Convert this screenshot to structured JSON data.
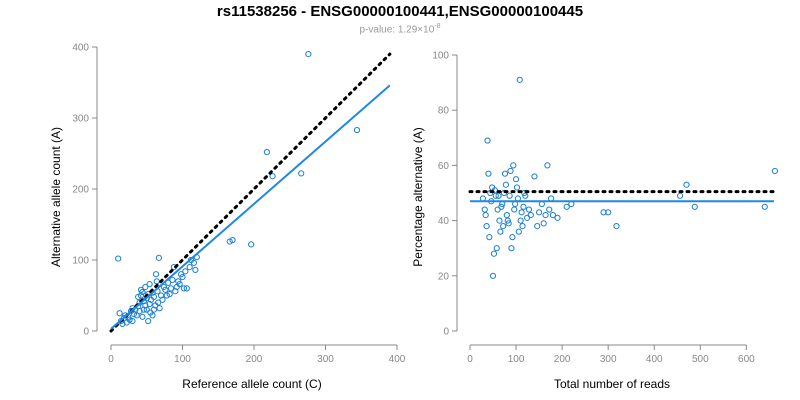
{
  "title": "rs11538256 - ENSG00000100441,ENSG00000100445",
  "subtitle": {
    "prefix": "p-value: 1.29×10",
    "exponent": "-8"
  },
  "colors": {
    "points": "#1a7fd6",
    "fit_line": "#1e88e5",
    "reference_line": "#000000",
    "axis": "#888888"
  },
  "chart_data": [
    {
      "type": "scatter",
      "name": "left",
      "xlabel": "Reference allele count (C)",
      "ylabel": "Alternative allele count (A)",
      "xlim": [
        0,
        400
      ],
      "ylim": [
        0,
        400
      ],
      "xticks": [
        0,
        100,
        200,
        300,
        400
      ],
      "yticks": [
        0,
        100,
        200,
        300,
        400
      ],
      "reference_line": {
        "style": "dotted",
        "x": [
          0,
          390
        ],
        "y": [
          0,
          390
        ]
      },
      "fit_line": {
        "style": "solid",
        "x": [
          0,
          390
        ],
        "y": [
          3,
          346
        ]
      },
      "points": [
        [
          10,
          102
        ],
        [
          12,
          25
        ],
        [
          14,
          14
        ],
        [
          16,
          10
        ],
        [
          18,
          18
        ],
        [
          20,
          22
        ],
        [
          22,
          12
        ],
        [
          24,
          20
        ],
        [
          26,
          16
        ],
        [
          28,
          28
        ],
        [
          30,
          32
        ],
        [
          30,
          14
        ],
        [
          32,
          24
        ],
        [
          34,
          30
        ],
        [
          36,
          22
        ],
        [
          38,
          35
        ],
        [
          40,
          40
        ],
        [
          40,
          28
        ],
        [
          42,
          50
        ],
        [
          44,
          20
        ],
        [
          44,
          55
        ],
        [
          46,
          42
        ],
        [
          48,
          36
        ],
        [
          50,
          30
        ],
        [
          50,
          46
        ],
        [
          52,
          14
        ],
        [
          52,
          52
        ],
        [
          54,
          38
        ],
        [
          55,
          26
        ],
        [
          56,
          44
        ],
        [
          58,
          54
        ],
        [
          60,
          30
        ],
        [
          60,
          48
        ],
        [
          62,
          36
        ],
        [
          63,
          80
        ],
        [
          65,
          56
        ],
        [
          66,
          40
        ],
        [
          67,
          103
        ],
        [
          68,
          32
        ],
        [
          70,
          50
        ],
        [
          72,
          44
        ],
        [
          74,
          62
        ],
        [
          76,
          58
        ],
        [
          78,
          50
        ],
        [
          80,
          68
        ],
        [
          82,
          52
        ],
        [
          84,
          60
        ],
        [
          86,
          72
        ],
        [
          88,
          90
        ],
        [
          90,
          56
        ],
        [
          92,
          62
        ],
        [
          94,
          70
        ],
        [
          96,
          66
        ],
        [
          98,
          80
        ],
        [
          100,
          76
        ],
        [
          102,
          60
        ],
        [
          104,
          84
        ],
        [
          106,
          60
        ],
        [
          110,
          90
        ],
        [
          112,
          100
        ],
        [
          116,
          96
        ],
        [
          118,
          86
        ],
        [
          120,
          104
        ],
        [
          42,
          58
        ],
        [
          48,
          62
        ],
        [
          54,
          66
        ],
        [
          64,
          70
        ],
        [
          38,
          48
        ],
        [
          46,
          30
        ],
        [
          58,
          22
        ],
        [
          166,
          126
        ],
        [
          170,
          128
        ],
        [
          196,
          122
        ],
        [
          218,
          252
        ],
        [
          226,
          218
        ],
        [
          266,
          222
        ],
        [
          276,
          390
        ],
        [
          344,
          283
        ]
      ]
    },
    {
      "type": "scatter",
      "name": "right",
      "xlabel": "Total number of reads",
      "ylabel": "Percentage alternative (A)",
      "xlim": [
        0,
        660
      ],
      "ylim": [
        0,
        100
      ],
      "xticks": [
        0,
        100,
        200,
        300,
        400,
        500,
        600
      ],
      "yticks": [
        0,
        20,
        40,
        60,
        80,
        100
      ],
      "reference_line": {
        "style": "dotted",
        "y": 50.5
      },
      "fit_line": {
        "style": "solid",
        "y": 47
      },
      "points": [
        [
          28,
          48
        ],
        [
          32,
          44
        ],
        [
          34,
          42
        ],
        [
          36,
          38
        ],
        [
          38,
          69
        ],
        [
          40,
          57
        ],
        [
          42,
          34
        ],
        [
          44,
          50
        ],
        [
          46,
          47
        ],
        [
          48,
          52
        ],
        [
          50,
          20
        ],
        [
          52,
          28
        ],
        [
          54,
          51
        ],
        [
          56,
          49
        ],
        [
          58,
          30
        ],
        [
          60,
          44
        ],
        [
          62,
          49
        ],
        [
          64,
          40
        ],
        [
          66,
          36
        ],
        [
          68,
          45
        ],
        [
          70,
          46
        ],
        [
          72,
          38
        ],
        [
          74,
          50
        ],
        [
          76,
          57
        ],
        [
          78,
          53
        ],
        [
          80,
          42
        ],
        [
          82,
          40
        ],
        [
          84,
          39
        ],
        [
          86,
          49
        ],
        [
          88,
          58
        ],
        [
          90,
          30
        ],
        [
          92,
          34
        ],
        [
          94,
          60
        ],
        [
          96,
          44
        ],
        [
          98,
          46
        ],
        [
          100,
          55
        ],
        [
          102,
          52
        ],
        [
          104,
          48
        ],
        [
          106,
          36
        ],
        [
          108,
          91
        ],
        [
          110,
          40
        ],
        [
          112,
          43
        ],
        [
          114,
          38
        ],
        [
          116,
          45
        ],
        [
          118,
          50
        ],
        [
          120,
          49
        ],
        [
          124,
          41
        ],
        [
          128,
          44
        ],
        [
          132,
          42
        ],
        [
          140,
          56
        ],
        [
          146,
          38
        ],
        [
          150,
          43
        ],
        [
          156,
          46
        ],
        [
          160,
          39
        ],
        [
          164,
          42
        ],
        [
          168,
          60
        ],
        [
          172,
          44
        ],
        [
          176,
          48
        ],
        [
          180,
          42
        ],
        [
          190,
          41
        ],
        [
          210,
          45
        ],
        [
          220,
          46
        ],
        [
          290,
          43
        ],
        [
          300,
          43
        ],
        [
          318,
          38
        ],
        [
          456,
          49
        ],
        [
          470,
          53
        ],
        [
          488,
          45
        ],
        [
          640,
          45
        ],
        [
          662,
          58
        ]
      ]
    }
  ]
}
